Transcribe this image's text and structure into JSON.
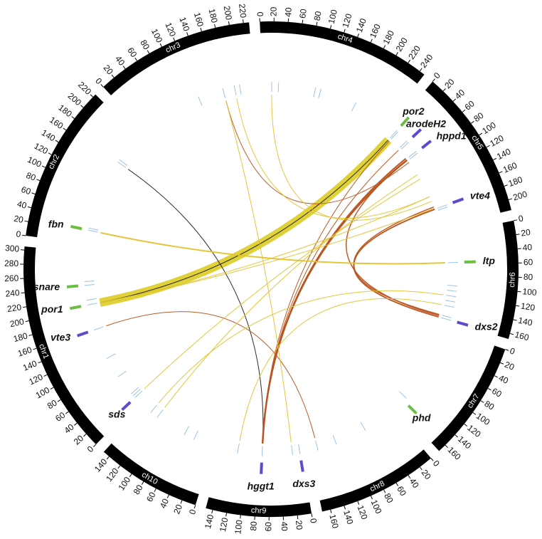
{
  "chart_data": {
    "type": "circos",
    "chromosomes": [
      {
        "name": "chr1",
        "length": 305,
        "ticks": [
          0,
          20,
          40,
          60,
          80,
          100,
          120,
          140,
          160,
          180,
          200,
          220,
          240,
          260,
          280,
          300
        ]
      },
      {
        "name": "chr2",
        "length": 225,
        "ticks": [
          0,
          20,
          40,
          60,
          80,
          100,
          120,
          140,
          160,
          180,
          200,
          220
        ]
      },
      {
        "name": "chr3",
        "length": 228,
        "ticks": [
          0,
          20,
          40,
          60,
          80,
          100,
          120,
          140,
          160,
          180,
          200,
          220
        ]
      },
      {
        "name": "chr4",
        "length": 248,
        "ticks": [
          0,
          20,
          40,
          60,
          80,
          100,
          120,
          140,
          160,
          180,
          200,
          220,
          240
        ]
      },
      {
        "name": "chr5",
        "length": 215,
        "ticks": [
          0,
          20,
          40,
          60,
          80,
          100,
          120,
          140,
          160,
          180,
          200
        ]
      },
      {
        "name": "chr6",
        "length": 168,
        "ticks": [
          0,
          20,
          40,
          60,
          80,
          100,
          120,
          140,
          160
        ]
      },
      {
        "name": "chr7",
        "length": 172,
        "ticks": [
          0,
          20,
          40,
          60,
          80,
          100,
          120,
          140,
          160
        ]
      },
      {
        "name": "chr8",
        "length": 172,
        "ticks": [
          0,
          20,
          40,
          60,
          80,
          100,
          120,
          140,
          160
        ]
      },
      {
        "name": "chr9",
        "length": 150,
        "ticks": [
          0,
          20,
          40,
          60,
          80,
          100,
          120,
          140
        ]
      },
      {
        "name": "ch10",
        "length": 150,
        "ticks": [
          0,
          20,
          40,
          60,
          80,
          100,
          120,
          140
        ]
      }
    ],
    "band_color": "#000000",
    "genes": [
      {
        "label": "por2",
        "chr": "chr5",
        "pos": 9,
        "color": "#6abf40"
      },
      {
        "label": "arodeH2",
        "chr": "chr5",
        "pos": 38,
        "color": "#5a4ccc"
      },
      {
        "label": "hppd1",
        "chr": "chr5",
        "pos": 64,
        "color": "#5a4ccc"
      },
      {
        "label": "vte4",
        "chr": "chr5",
        "pos": 177,
        "color": "#5a4ccc"
      },
      {
        "label": "ltp",
        "chr": "chr6",
        "pos": 56,
        "color": "#6abf40"
      },
      {
        "label": "dxs2",
        "chr": "chr6",
        "pos": 165,
        "color": "#5a4ccc"
      },
      {
        "label": "phd",
        "chr": "chr7",
        "pos": 157,
        "color": "#6abf40"
      },
      {
        "label": "dxs3",
        "chr": "chr9",
        "pos": 3,
        "color": "#5a4ccc"
      },
      {
        "label": "hggt1",
        "chr": "chr9",
        "pos": 74,
        "color": "#5a4ccc"
      },
      {
        "label": "sds",
        "chr": "chr1",
        "pos": 10,
        "color": "#5a4ccc"
      },
      {
        "label": "vte3",
        "chr": "chr1",
        "pos": 158,
        "color": "#5a4ccc"
      },
      {
        "label": "por1",
        "chr": "chr1",
        "pos": 206,
        "color": "#6abf40"
      },
      {
        "label": "snare",
        "chr": "chr1",
        "pos": 243,
        "color": "#6abf40"
      },
      {
        "label": "fbn",
        "chr": "chr2",
        "pos": 26,
        "color": "#6abf40"
      }
    ],
    "feature_color": "#9cc3e4",
    "features": [
      {
        "chr": "chr5",
        "pos": 9
      },
      {
        "chr": "chr5",
        "pos": 12
      },
      {
        "chr": "chr5",
        "pos": 36
      },
      {
        "chr": "chr5",
        "pos": 40
      },
      {
        "chr": "chr5",
        "pos": 62
      },
      {
        "chr": "chr5",
        "pos": 66
      },
      {
        "chr": "chr5",
        "pos": 177
      },
      {
        "chr": "chr5",
        "pos": 181
      },
      {
        "chr": "chr6",
        "pos": 56
      },
      {
        "chr": "chr6",
        "pos": 100
      },
      {
        "chr": "chr6",
        "pos": 110
      },
      {
        "chr": "chr6",
        "pos": 120
      },
      {
        "chr": "chr6",
        "pos": 130
      },
      {
        "chr": "chr6",
        "pos": 140
      },
      {
        "chr": "chr6",
        "pos": 160
      },
      {
        "chr": "chr6",
        "pos": 165
      },
      {
        "chr": "chr7",
        "pos": 150
      },
      {
        "chr": "chr8",
        "pos": 60
      },
      {
        "chr": "chr8",
        "pos": 120
      },
      {
        "chr": "chr8",
        "pos": 156
      },
      {
        "chr": "chr9",
        "pos": 3
      },
      {
        "chr": "chr9",
        "pos": 17
      },
      {
        "chr": "chr9",
        "pos": 74
      },
      {
        "chr": "chr9",
        "pos": 120
      },
      {
        "chr": "ch10",
        "pos": 40
      },
      {
        "chr": "ch10",
        "pos": 60
      },
      {
        "chr": "ch10",
        "pos": 120
      },
      {
        "chr": "ch10",
        "pos": 135
      },
      {
        "chr": "chr1",
        "pos": 10
      },
      {
        "chr": "chr1",
        "pos": 15
      },
      {
        "chr": "chr1",
        "pos": 20
      },
      {
        "chr": "chr1",
        "pos": 60
      },
      {
        "chr": "chr1",
        "pos": 100
      },
      {
        "chr": "chr1",
        "pos": 158
      },
      {
        "chr": "chr1",
        "pos": 206
      },
      {
        "chr": "chr1",
        "pos": 215
      },
      {
        "chr": "chr1",
        "pos": 243
      },
      {
        "chr": "chr1",
        "pos": 250
      },
      {
        "chr": "chr2",
        "pos": 26
      },
      {
        "chr": "chr2",
        "pos": 30
      },
      {
        "chr": "chr2",
        "pos": 165
      },
      {
        "chr": "chr2",
        "pos": 170
      },
      {
        "chr": "chr3",
        "pos": 120
      },
      {
        "chr": "chr3",
        "pos": 168
      },
      {
        "chr": "chr3",
        "pos": 190
      },
      {
        "chr": "chr3",
        "pos": 200
      },
      {
        "chr": "chr4",
        "pos": 17
      },
      {
        "chr": "chr4",
        "pos": 30
      },
      {
        "chr": "chr4",
        "pos": 100
      },
      {
        "chr": "chr4",
        "pos": 110
      },
      {
        "chr": "chr4",
        "pos": 180
      }
    ],
    "links": [
      {
        "source": {
          "chr": "chr1",
          "pos": 206
        },
        "target": {
          "chr": "chr5",
          "pos": 9
        },
        "color": "#ddcf2c",
        "weight": 12
      },
      {
        "source": {
          "chr": "chr1",
          "pos": 206
        },
        "target": {
          "chr": "chr5",
          "pos": 9
        },
        "color": "#222222",
        "weight": 1
      },
      {
        "source": {
          "chr": "chr2",
          "pos": 165
        },
        "target": {
          "chr": "chr9",
          "pos": 74
        },
        "color": "#222222",
        "weight": 1
      },
      {
        "source": {
          "chr": "chr9",
          "pos": 74
        },
        "target": {
          "chr": "chr5",
          "pos": 64
        },
        "color": "#b8521c",
        "weight": 2.5
      },
      {
        "source": {
          "chr": "chr9",
          "pos": 74
        },
        "target": {
          "chr": "chr5",
          "pos": 60
        },
        "color": "#b8521c",
        "weight": 2
      },
      {
        "source": {
          "chr": "chr9",
          "pos": 74
        },
        "target": {
          "chr": "chr5",
          "pos": 38
        },
        "color": "#b8521c",
        "weight": 1
      },
      {
        "source": {
          "chr": "chr9",
          "pos": 74
        },
        "target": {
          "chr": "chr5",
          "pos": 12
        },
        "color": "#b8521c",
        "weight": 1
      },
      {
        "source": {
          "chr": "chr5",
          "pos": 177
        },
        "target": {
          "chr": "chr6",
          "pos": 165
        },
        "color": "#b8521c",
        "weight": 2
      },
      {
        "source": {
          "chr": "chr5",
          "pos": 172
        },
        "target": {
          "chr": "chr6",
          "pos": 160
        },
        "color": "#b8521c",
        "weight": 1.5
      },
      {
        "source": {
          "chr": "chr5",
          "pos": 64
        },
        "target": {
          "chr": "chr6",
          "pos": 162
        },
        "color": "#b8521c",
        "weight": 1.5
      },
      {
        "source": {
          "chr": "chr1",
          "pos": 158
        },
        "target": {
          "chr": "chr8",
          "pos": 156
        },
        "color": "#b8521c",
        "weight": 1
      },
      {
        "source": {
          "chr": "chr3",
          "pos": 168
        },
        "target": {
          "chr": "chr5",
          "pos": 70
        },
        "color": "#b8521c",
        "weight": 1
      },
      {
        "source": {
          "chr": "chr2",
          "pos": 26
        },
        "target": {
          "chr": "chr6",
          "pos": 56
        },
        "color": "#e3c330",
        "weight": 2
      },
      {
        "source": {
          "chr": "chr3",
          "pos": 168
        },
        "target": {
          "chr": "chr9",
          "pos": 17
        },
        "color": "#e3c330",
        "weight": 1
      },
      {
        "source": {
          "chr": "chr4",
          "pos": 17
        },
        "target": {
          "chr": "chr5",
          "pos": 160
        },
        "color": "#e3c330",
        "weight": 1
      },
      {
        "source": {
          "chr": "chr3",
          "pos": 190
        },
        "target": {
          "chr": "chr5",
          "pos": 150
        },
        "color": "#e3c330",
        "weight": 1
      },
      {
        "source": {
          "chr": "chr1",
          "pos": 206
        },
        "target": {
          "chr": "chr5",
          "pos": 150
        },
        "color": "#e3c330",
        "weight": 1
      },
      {
        "source": {
          "chr": "chr1",
          "pos": 206
        },
        "target": {
          "chr": "chr5",
          "pos": 175
        },
        "color": "#e3c330",
        "weight": 1
      },
      {
        "source": {
          "chr": "chr1",
          "pos": 10
        },
        "target": {
          "chr": "chr5",
          "pos": 110
        },
        "color": "#e3c330",
        "weight": 1
      },
      {
        "source": {
          "chr": "ch10",
          "pos": 135
        },
        "target": {
          "chr": "chr6",
          "pos": 120
        },
        "color": "#e3c330",
        "weight": 1
      },
      {
        "source": {
          "chr": "chr9",
          "pos": 120
        },
        "target": {
          "chr": "chr6",
          "pos": 140
        },
        "color": "#e3c330",
        "weight": 1
      },
      {
        "source": {
          "chr": "ch10",
          "pos": 120
        },
        "target": {
          "chr": "chr5",
          "pos": 100
        },
        "color": "#e3c330",
        "weight": 1
      }
    ]
  }
}
